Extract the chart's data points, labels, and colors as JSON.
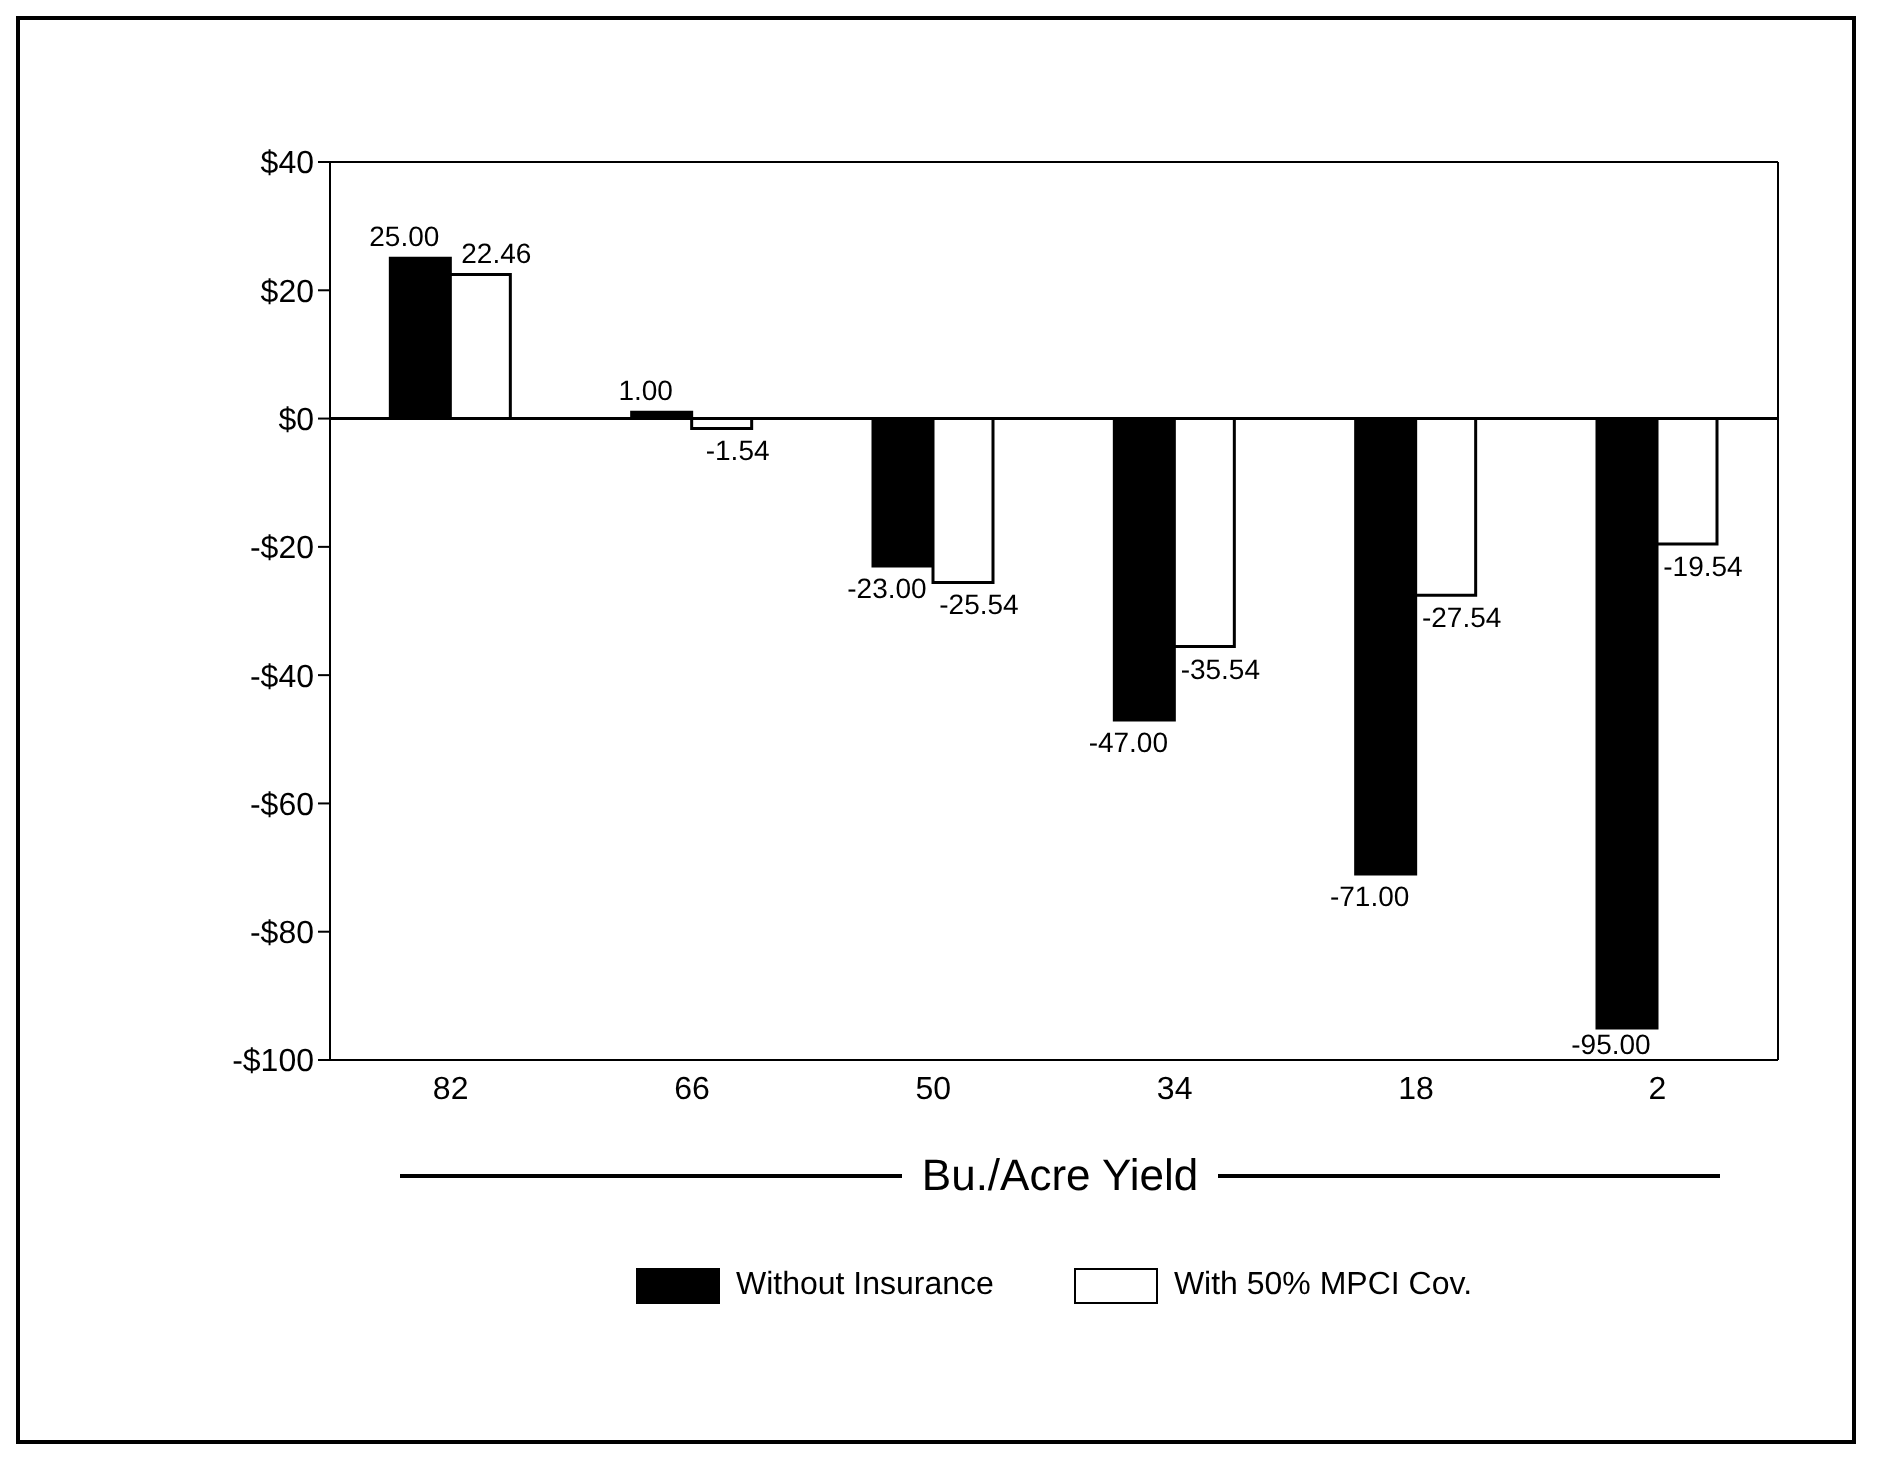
{
  "chart_data": {
    "type": "bar",
    "xlabel": "Bu./Acre Yield",
    "categories": [
      "82",
      "66",
      "50",
      "34",
      "18",
      "2"
    ],
    "series": [
      {
        "name": "Without Insurance",
        "color": "#000000",
        "values": [
          25,
          1,
          -23,
          -47,
          -71,
          -95
        ],
        "value_labels": [
          "25.00",
          "1.00",
          "-23.00",
          "-47.00",
          "-71.00",
          "-95.00"
        ]
      },
      {
        "name": "With 50% MPCI Cov.",
        "color": "#ffffff",
        "values": [
          22.46,
          -1.54,
          -25.54,
          -35.54,
          -27.54,
          -19.54
        ],
        "value_labels": [
          "22.46",
          "-1.54",
          "-25.54",
          "-35.54",
          "-27.54",
          "-19.54"
        ]
      }
    ],
    "ylim": [
      -100,
      40
    ],
    "yticks": [
      {
        "value": -100,
        "label": "-$100"
      },
      {
        "value": -80,
        "label": "-$80"
      },
      {
        "value": -60,
        "label": "-$60"
      },
      {
        "value": -40,
        "label": "-$40"
      },
      {
        "value": -20,
        "label": "-$20"
      },
      {
        "value": 0,
        "label": "$0"
      },
      {
        "value": 20,
        "label": "$20"
      },
      {
        "value": 40,
        "label": "$40"
      }
    ],
    "ref_lines": [
      {
        "axis": "y",
        "value": 0,
        "color": "#000000"
      }
    ],
    "grid": false,
    "legend": "bottom"
  }
}
